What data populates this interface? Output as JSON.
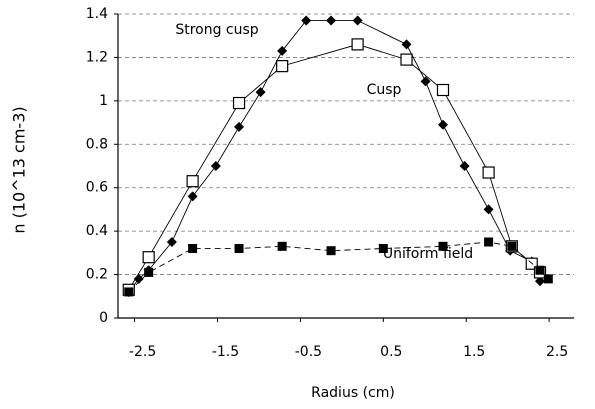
{
  "chart_data": {
    "type": "scatter",
    "x_label": "Radius (cm)",
    "y_label": "n (10^13 cm-3)",
    "xlim": [
      -2.7,
      2.8
    ],
    "xticks": [
      -2.5,
      -1.5,
      -0.5,
      0.5,
      1.5,
      2.5
    ],
    "ylim": [
      0,
      1.4
    ],
    "yticks": [
      0,
      0.2,
      0.4,
      0.6,
      0.8,
      1,
      1.2,
      1.4
    ],
    "grid": true,
    "series": [
      {
        "name": "Strong cusp",
        "color": "#000000",
        "marker": "diamond",
        "x": [
          -2.57,
          -2.45,
          -2.33,
          -2.05,
          -1.8,
          -1.52,
          -1.24,
          -0.98,
          -0.72,
          -0.43,
          -0.13,
          0.19,
          0.78,
          1.01,
          1.22,
          1.48,
          1.77,
          2.03,
          2.29,
          2.39
        ],
        "values": [
          0.12,
          0.18,
          0.22,
          0.35,
          0.56,
          0.7,
          0.88,
          1.04,
          1.23,
          1.37,
          1.37,
          1.37,
          1.26,
          1.09,
          0.89,
          0.7,
          0.5,
          0.31,
          0.26,
          0.17
        ]
      },
      {
        "name": "Cusp",
        "color": "#000000",
        "marker": "square-open",
        "x": [
          -2.57,
          -2.33,
          -1.8,
          -1.24,
          -0.72,
          0.19,
          0.78,
          1.22,
          1.77,
          2.05,
          2.29,
          2.39
        ],
        "values": [
          0.13,
          0.28,
          0.63,
          0.99,
          1.16,
          1.26,
          1.19,
          1.05,
          0.67,
          0.33,
          0.25,
          0.21
        ]
      },
      {
        "name": "Uniform field",
        "color": "#000000",
        "marker": "square",
        "x": [
          -2.57,
          -2.33,
          -1.8,
          -1.24,
          -0.72,
          -0.13,
          0.5,
          1.22,
          1.77,
          2.05,
          2.39,
          2.49
        ],
        "values": [
          0.12,
          0.21,
          0.32,
          0.32,
          0.33,
          0.31,
          0.32,
          0.33,
          0.35,
          0.33,
          0.22,
          0.18
        ]
      }
    ]
  }
}
